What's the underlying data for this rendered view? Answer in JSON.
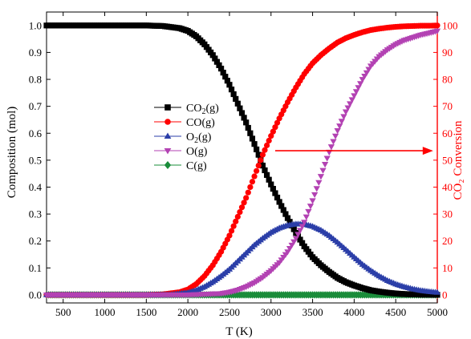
{
  "chart_data": {
    "type": "scatter",
    "xlabel": "T (K)",
    "ylabel": "Composition (mol)",
    "y2label": "CO₂ Conversion",
    "xlim": [
      300,
      5000
    ],
    "ylim": [
      -0.03,
      1.05
    ],
    "y2lim": [
      -3,
      105
    ],
    "xticks": [
      500,
      1000,
      1500,
      2000,
      2500,
      3000,
      3500,
      4000,
      4500,
      5000
    ],
    "yticks": [
      "0.0",
      "0.1",
      "0.2",
      "0.3",
      "0.4",
      "0.5",
      "0.6",
      "0.7",
      "0.8",
      "0.9",
      "1.0"
    ],
    "y2ticks": [
      "0",
      "10",
      "20",
      "30",
      "40",
      "50",
      "60",
      "70",
      "80",
      "90",
      "100"
    ],
    "grid": false,
    "legend_position": "center-left",
    "series": [
      {
        "name": "CO2(g)",
        "label_main": "CO",
        "label_sub": "2",
        "label_tail": "(g)",
        "color": "#000000",
        "marker": "square",
        "axis": "left",
        "x": [
          300,
          1500,
          1700,
          1900,
          2000,
          2100,
          2200,
          2300,
          2400,
          2500,
          2600,
          2700,
          2800,
          2900,
          3000,
          3100,
          3200,
          3300,
          3400,
          3500,
          3600,
          3700,
          3800,
          3900,
          4000,
          4100,
          4200,
          4300,
          4400,
          4500,
          4600,
          4700,
          4800,
          4900,
          5000
        ],
        "y": [
          1.0,
          1.0,
          0.998,
          0.99,
          0.98,
          0.96,
          0.93,
          0.89,
          0.84,
          0.78,
          0.71,
          0.64,
          0.56,
          0.48,
          0.41,
          0.345,
          0.285,
          0.23,
          0.18,
          0.14,
          0.11,
          0.085,
          0.063,
          0.047,
          0.035,
          0.025,
          0.017,
          0.012,
          0.008,
          0.005,
          0.003,
          0.002,
          0.001,
          0.001,
          0.0
        ]
      },
      {
        "name": "CO(g)",
        "label_main": "CO",
        "label_sub": "",
        "label_tail": "(g)",
        "color": "#ff0000",
        "marker": "circle",
        "axis": "left",
        "x": [
          300,
          1500,
          1700,
          1900,
          2000,
          2100,
          2200,
          2300,
          2400,
          2500,
          2600,
          2700,
          2800,
          2900,
          3000,
          3100,
          3200,
          3300,
          3400,
          3500,
          3600,
          3700,
          3800,
          3900,
          4000,
          4100,
          4200,
          4300,
          4400,
          4500,
          4600,
          4700,
          4800,
          4900,
          5000
        ],
        "y": [
          0.0,
          0.0,
          0.002,
          0.01,
          0.02,
          0.04,
          0.07,
          0.11,
          0.16,
          0.22,
          0.29,
          0.36,
          0.44,
          0.52,
          0.59,
          0.655,
          0.715,
          0.77,
          0.82,
          0.86,
          0.89,
          0.915,
          0.937,
          0.953,
          0.965,
          0.975,
          0.983,
          0.988,
          0.992,
          0.995,
          0.997,
          0.998,
          0.999,
          0.999,
          1.0
        ]
      },
      {
        "name": "O2(g)",
        "label_main": "O",
        "label_sub": "2",
        "label_tail": "(g)",
        "color": "#2b3ea8",
        "marker": "triangle-up",
        "axis": "left",
        "x": [
          300,
          1500,
          1800,
          2000,
          2100,
          2200,
          2300,
          2400,
          2500,
          2600,
          2700,
          2800,
          2900,
          3000,
          3100,
          3200,
          3300,
          3400,
          3500,
          3600,
          3700,
          3800,
          3900,
          4000,
          4100,
          4200,
          4300,
          4400,
          4500,
          4600,
          4700,
          4800,
          4900,
          5000
        ],
        "y": [
          0.0,
          0.0,
          0.001,
          0.008,
          0.017,
          0.03,
          0.048,
          0.07,
          0.095,
          0.125,
          0.155,
          0.185,
          0.21,
          0.232,
          0.248,
          0.258,
          0.263,
          0.262,
          0.254,
          0.24,
          0.22,
          0.195,
          0.168,
          0.14,
          0.113,
          0.09,
          0.07,
          0.053,
          0.04,
          0.03,
          0.022,
          0.016,
          0.012,
          0.009
        ]
      },
      {
        "name": "O(g)",
        "label_main": "O",
        "label_sub": "",
        "label_tail": "(g)",
        "color": "#b342b3",
        "marker": "triangle-down",
        "axis": "left",
        "x": [
          300,
          2000,
          2400,
          2500,
          2600,
          2700,
          2800,
          2900,
          3000,
          3100,
          3200,
          3300,
          3400,
          3500,
          3600,
          3700,
          3800,
          3900,
          4000,
          4100,
          4200,
          4300,
          4400,
          4500,
          4600,
          4700,
          4800,
          4900,
          5000
        ],
        "y": [
          0.0,
          0.0,
          0.005,
          0.01,
          0.018,
          0.03,
          0.045,
          0.065,
          0.09,
          0.12,
          0.16,
          0.21,
          0.27,
          0.35,
          0.44,
          0.53,
          0.61,
          0.68,
          0.74,
          0.8,
          0.85,
          0.885,
          0.91,
          0.93,
          0.945,
          0.955,
          0.965,
          0.972,
          0.98
        ]
      },
      {
        "name": "C(g)",
        "label_main": "C",
        "label_sub": "",
        "label_tail": "(g)",
        "color": "#1a8c3a",
        "marker": "diamond",
        "axis": "left",
        "x": [
          300,
          1000,
          2000,
          3000,
          4000,
          5000
        ],
        "y": [
          0.0,
          0.0,
          0.0,
          0.0,
          0.0,
          0.0
        ]
      }
    ],
    "annotation": {
      "type": "arrow",
      "from": [
        3050,
        0.535
      ],
      "to": [
        4950,
        0.535
      ],
      "color": "#ff0000"
    }
  }
}
